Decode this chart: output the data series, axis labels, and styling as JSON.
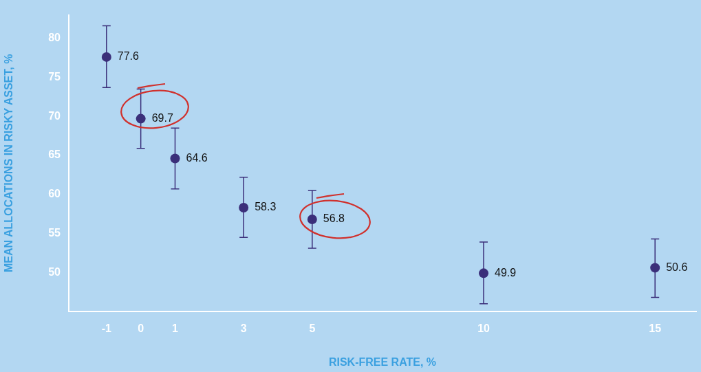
{
  "chart_data": {
    "type": "scatter",
    "xlabel": "RISK-FREE RATE, %",
    "ylabel": "MEAN ALLOCATIONS IN RISKY ASSET, %",
    "x": [
      -1,
      0,
      1,
      3,
      5,
      10,
      15
    ],
    "values": [
      77.6,
      69.7,
      64.6,
      58.3,
      56.8,
      49.9,
      50.6
    ],
    "errors": [
      [
        73.7,
        81.6
      ],
      [
        65.9,
        73.5
      ],
      [
        60.7,
        68.5
      ],
      [
        54.5,
        62.2
      ],
      [
        53.1,
        60.5
      ],
      [
        46.0,
        53.9
      ],
      [
        46.8,
        54.3
      ]
    ],
    "color": "#3b2f7a",
    "marker": "circle",
    "data_labels": true,
    "grid": false,
    "legend": false,
    "xlim": [
      -2.1,
      16.2
    ],
    "xticks": [
      -1,
      0,
      1,
      3,
      5,
      10,
      15
    ],
    "ylim": [
      45,
      83
    ],
    "yticks": [
      50,
      55,
      60,
      65,
      70,
      75,
      80
    ]
  }
}
